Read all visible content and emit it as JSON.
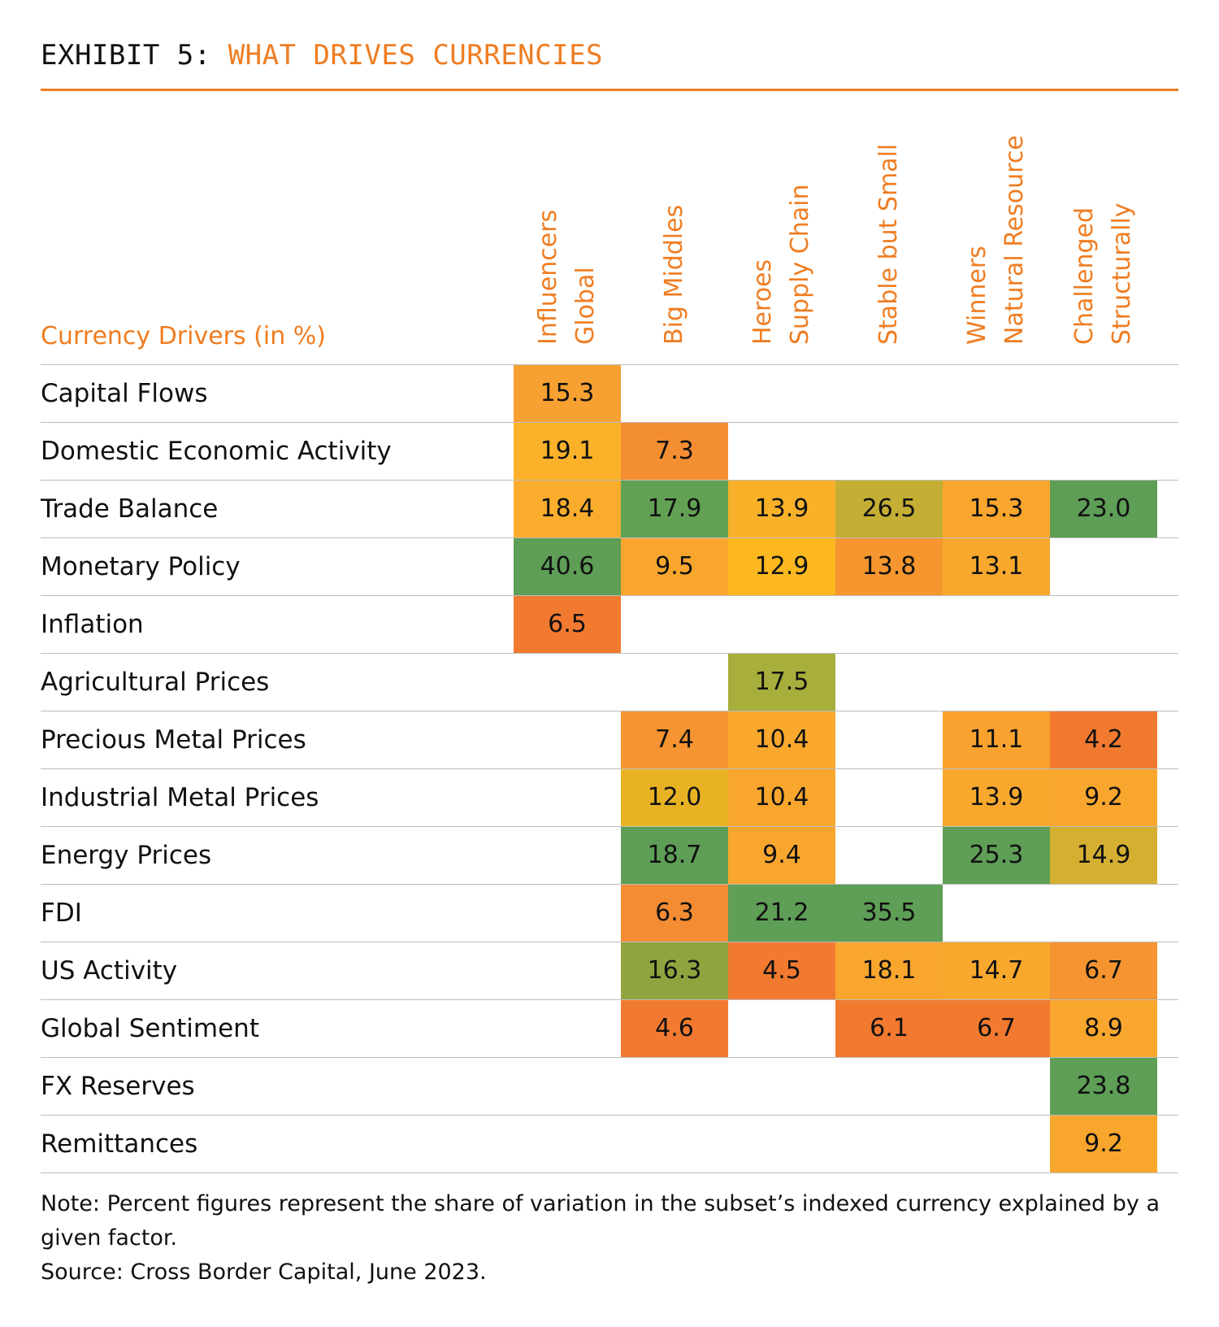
{
  "title": {
    "lead": "EXHIBIT 5:",
    "accent": "WHAT DRIVES CURRENCIES"
  },
  "colors": {
    "accent": "#EF7D22",
    "scale_low": "#F07A2E",
    "scale_mid": "#FBAF2A",
    "scale_high": "#5C9E59"
  },
  "chart_data": {
    "type": "heatmap",
    "title": "WHAT DRIVES CURRENCIES",
    "row_header": "Currency Drivers (in %)",
    "columns": [
      [
        "Global",
        "Influencers"
      ],
      [
        "Big Middles"
      ],
      [
        "Supply Chain",
        "Heroes"
      ],
      [
        "Stable but Small"
      ],
      [
        "Natural Resource",
        "Winners"
      ],
      [
        "Structurally",
        "Challenged"
      ]
    ],
    "rows": [
      {
        "label": "Capital Flows",
        "values": [
          "15.3",
          null,
          null,
          null,
          null,
          null
        ]
      },
      {
        "label": "Domestic Economic Activity",
        "values": [
          "19.1",
          "7.3",
          null,
          null,
          null,
          null
        ]
      },
      {
        "label": "Trade Balance",
        "values": [
          "18.4",
          "17.9",
          "13.9",
          "26.5",
          "15.3",
          "23.0"
        ]
      },
      {
        "label": "Monetary Policy",
        "values": [
          "40.6",
          "9.5",
          "12.9",
          "13.8",
          "13.1",
          null
        ]
      },
      {
        "label": "Inflation",
        "values": [
          "6.5",
          null,
          null,
          null,
          null,
          null
        ]
      },
      {
        "label": "Agricultural Prices",
        "values": [
          null,
          null,
          "17.5",
          null,
          null,
          null
        ]
      },
      {
        "label": "Precious Metal Prices",
        "values": [
          null,
          "7.4",
          "10.4",
          null,
          "11.1",
          "4.2"
        ]
      },
      {
        "label": "Industrial Metal Prices",
        "values": [
          null,
          "12.0",
          "10.4",
          null,
          "13.9",
          "9.2"
        ]
      },
      {
        "label": "Energy Prices",
        "values": [
          null,
          "18.7",
          "9.4",
          null,
          "25.3",
          "14.9"
        ]
      },
      {
        "label": "FDI",
        "values": [
          null,
          "6.3",
          "21.2",
          "35.5",
          null,
          null
        ]
      },
      {
        "label": "US Activity",
        "values": [
          null,
          "16.3",
          "4.5",
          "18.1",
          "14.7",
          "6.7"
        ]
      },
      {
        "label": "Global Sentiment",
        "values": [
          null,
          "4.6",
          null,
          "6.1",
          "6.7",
          "8.9"
        ]
      },
      {
        "label": "FX Reserves",
        "values": [
          null,
          null,
          null,
          null,
          null,
          "23.8"
        ]
      },
      {
        "label": "Remittances",
        "values": [
          null,
          null,
          null,
          null,
          null,
          "9.2"
        ]
      }
    ],
    "cell_colors": [
      [
        "#F7A132",
        null,
        null,
        null,
        null,
        null
      ],
      [
        "#FBB22A",
        "#F48E33",
        null,
        null,
        null,
        null
      ],
      [
        "#FAAC2D",
        "#62A154",
        "#F9B12A",
        "#C4AE34",
        "#F9A62E",
        "#5E9E56"
      ],
      [
        "#5E9E56",
        "#F9A62E",
        "#FDB820",
        "#F5962F",
        "#F9A82E",
        null
      ],
      [
        "#F27A30",
        null,
        null,
        null,
        null,
        null
      ],
      [
        null,
        null,
        "#A8AE3C",
        null,
        null,
        null
      ],
      [
        null,
        "#F59430",
        "#F9A82D",
        null,
        "#F9A22F",
        "#F27A30"
      ],
      [
        null,
        "#E8B224",
        "#F9A62E",
        null,
        "#F9A82E",
        "#F9A62E"
      ],
      [
        null,
        "#5E9E56",
        "#F9A62E",
        null,
        "#5E9E56",
        "#D4AF32"
      ],
      [
        null,
        "#F48C33",
        "#5E9E56",
        "#5E9E56",
        null,
        null
      ],
      [
        null,
        "#8FA43E",
        "#F27A30",
        "#F9A62E",
        "#F9A82E",
        "#F59430"
      ],
      [
        null,
        "#F27A30",
        null,
        "#F27A30",
        "#F27A30",
        "#F9A62E"
      ],
      [
        null,
        null,
        null,
        null,
        null,
        "#5E9E56"
      ],
      [
        null,
        null,
        null,
        null,
        null,
        "#F9A62E"
      ]
    ]
  },
  "note": "Note: Percent figures represent the share of variation in the subset’s indexed currency explained by a given factor.",
  "source": "Source: Cross Border Capital, June 2023."
}
